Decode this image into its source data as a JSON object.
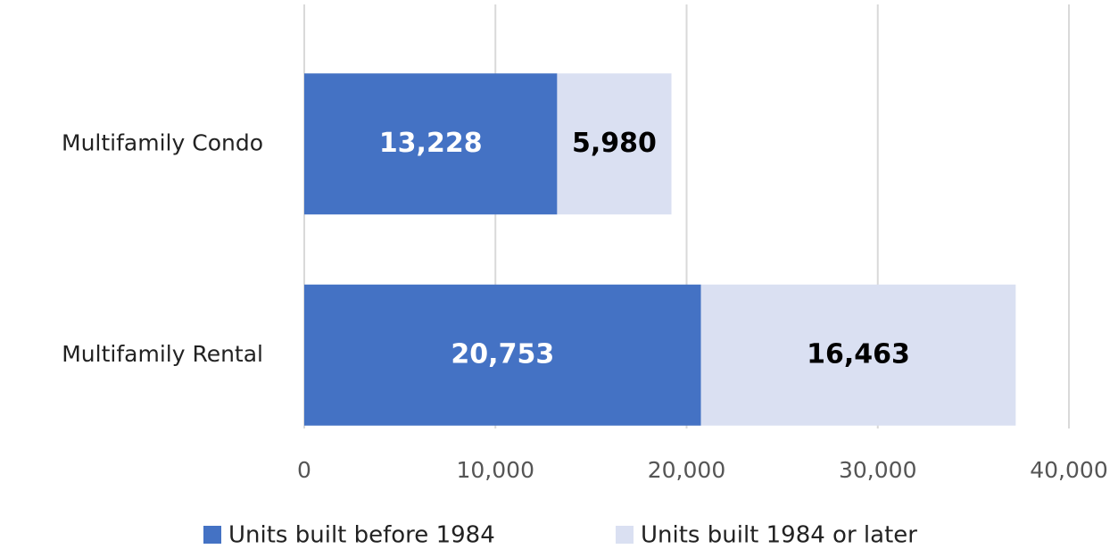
{
  "chart_data": {
    "type": "stacked_bar_horizontal",
    "categories": [
      "Multifamily Condo",
      "Multifamily Rental"
    ],
    "series": [
      {
        "name": "Units built before 1984",
        "color": "#4472c4",
        "values": [
          13228,
          20753
        ],
        "value_labels": [
          "13,228",
          "20,753"
        ]
      },
      {
        "name": "Units built 1984 or later",
        "color": "#dae0f2",
        "values": [
          5980,
          16463
        ],
        "value_labels": [
          "5,980",
          "16,463"
        ]
      }
    ],
    "xlim": [
      0,
      40000
    ],
    "xticks": [
      0,
      {
        "value": 10000,
        "label": "10,000"
      },
      {
        "value": 20000,
        "label": "20,000"
      },
      {
        "value": 30000,
        "label": "30,000"
      },
      {
        "value": 40000,
        "label": "40,000"
      }
    ],
    "grid": true,
    "legend": "bottom"
  }
}
